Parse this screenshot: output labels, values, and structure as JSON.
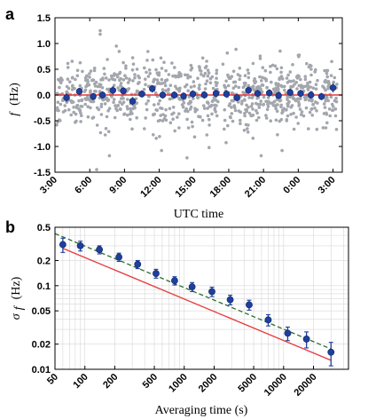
{
  "chart_data": [
    {
      "panel": "a",
      "type": "scatter",
      "xlabel": "UTC time",
      "ylabel_symbol": "f",
      "ylabel_unit": "(Hz)",
      "ylim": [
        -1.5,
        1.5
      ],
      "y_ticks": [
        "1.5",
        "1.0",
        "0.5",
        "0.0",
        "-0.5",
        "-1.0",
        "-1.5"
      ],
      "y_tick_values": [
        1.5,
        1.0,
        0.5,
        0.0,
        -0.5,
        -1.0,
        -1.5
      ],
      "x_ticks": [
        "3:00",
        "6:00",
        "9:00",
        "12:00",
        "15:00",
        "18:00",
        "21:00",
        "0:00",
        "3:00"
      ],
      "x_tick_hours": [
        3,
        6,
        9,
        12,
        15,
        18,
        21,
        24,
        27
      ],
      "xlim_hours": [
        3,
        27.8
      ],
      "grid": false,
      "colors": {
        "raw": "#a3a6ad",
        "mean": "#1f3f9e",
        "zero_line": "#e8383b",
        "frame": "#000000"
      },
      "series": [
        {
          "role": "binned means with error bars",
          "x_hours": [
            4.0,
            5.1,
            6.3,
            7.1,
            8.0,
            8.9,
            9.7,
            10.5,
            11.4,
            12.3,
            13.3,
            14.1,
            14.9,
            15.9,
            16.9,
            17.8,
            18.7,
            19.7,
            20.5,
            21.5,
            22.3,
            23.3,
            24.2,
            25.1,
            26.0,
            27.0
          ],
          "y": [
            -0.05,
            0.07,
            -0.03,
            0.0,
            0.09,
            0.08,
            -0.12,
            0.02,
            0.12,
            0.0,
            0.0,
            -0.02,
            0.02,
            0.0,
            0.03,
            0.02,
            -0.05,
            0.09,
            0.03,
            0.04,
            -0.01,
            0.05,
            0.03,
            0.0,
            -0.03,
            0.14
          ],
          "err": [
            0.08,
            0.07,
            0.07,
            0.07,
            0.08,
            0.07,
            0.08,
            0.07,
            0.07,
            0.07,
            0.07,
            0.07,
            0.07,
            0.07,
            0.07,
            0.07,
            0.07,
            0.07,
            0.07,
            0.07,
            0.07,
            0.07,
            0.07,
            0.07,
            0.07,
            0.09
          ]
        }
      ],
      "raw_points": {
        "description": "individual measurements (grey dots)",
        "count": 900,
        "x_range_hours": [
          3.1,
          27.4
        ],
        "y_mean": 0.0,
        "y_std": 0.32,
        "gap_hours": [
          [
            10.3,
            10.7
          ],
          [
            17.2,
            17.5
          ],
          [
            25.7,
            26.1
          ]
        ],
        "outliers": [
          [
            6.9,
            1.25
          ],
          [
            6.9,
            1.18
          ],
          [
            8.3,
            0.95
          ],
          [
            6.6,
            -1.45
          ],
          [
            14.4,
            -1.22
          ],
          [
            20.8,
            -1.18
          ],
          [
            7.7,
            -1.18
          ],
          [
            22.6,
            -1.08
          ],
          [
            12.2,
            -1.08
          ],
          [
            16.3,
            -1.02
          ]
        ]
      },
      "reference_line": {
        "y": 0.0
      }
    },
    {
      "panel": "b",
      "type": "scatter",
      "xscale": "log",
      "yscale": "log",
      "xlabel": "Averaging time (s)",
      "ylabel_symbol": "σ",
      "ylabel_sub": "f",
      "ylabel_unit": "(Hz)",
      "xlim": [
        50,
        45000
      ],
      "ylim": [
        0.01,
        0.5
      ],
      "x_ticks": [
        "50",
        "100",
        "200",
        "500",
        "1000",
        "2000",
        "5000",
        "10000",
        "20000"
      ],
      "x_tick_values": [
        50,
        100,
        200,
        500,
        1000,
        2000,
        5000,
        10000,
        20000
      ],
      "y_ticks": [
        "0.5",
        "0.2",
        "0.1",
        "0.05",
        "0.02",
        "0.01"
      ],
      "y_tick_values": [
        0.5,
        0.2,
        0.1,
        0.05,
        0.02,
        0.01
      ],
      "grid": true,
      "colors": {
        "points": "#1f3f9e",
        "fit": "#2c6e2c",
        "limit": "#e8383b",
        "grid": "#d7d7d7"
      },
      "series": [
        {
          "role": "Allan deviation",
          "x": [
            60,
            90,
            140,
            220,
            340,
            520,
            800,
            1200,
            1900,
            2900,
            4500,
            7000,
            11000,
            17000,
            30000
          ],
          "y": [
            0.31,
            0.3,
            0.27,
            0.22,
            0.18,
            0.14,
            0.115,
            0.097,
            0.085,
            0.068,
            0.059,
            0.039,
            0.027,
            0.023,
            0.016
          ],
          "err_low": [
            0.06,
            0.04,
            0.03,
            0.025,
            0.02,
            0.017,
            0.013,
            0.012,
            0.011,
            0.009,
            0.008,
            0.006,
            0.005,
            0.005,
            0.005
          ],
          "err_high": [
            0.06,
            0.04,
            0.03,
            0.025,
            0.02,
            0.017,
            0.013,
            0.012,
            0.011,
            0.009,
            0.008,
            0.006,
            0.005,
            0.005,
            0.005
          ]
        }
      ],
      "lines": [
        {
          "role": "dashed fit",
          "style": "dashed",
          "x": [
            50,
            30000
          ],
          "y": [
            0.42,
            0.0175
          ]
        },
        {
          "role": "solid reference",
          "style": "solid",
          "x": [
            60,
            30000
          ],
          "y": [
            0.28,
            0.0128
          ]
        }
      ]
    }
  ]
}
